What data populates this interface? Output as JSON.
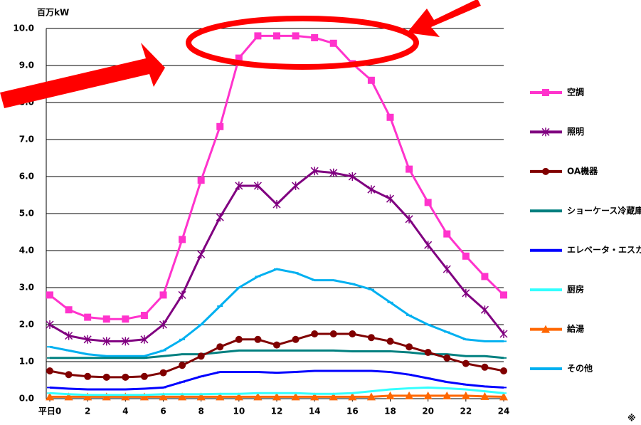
{
  "chart_data": {
    "type": "line",
    "y_axis_label": "百万kW",
    "annotation": "※",
    "x": [
      0,
      1,
      2,
      3,
      4,
      5,
      6,
      7,
      8,
      9,
      10,
      11,
      12,
      13,
      14,
      15,
      16,
      17,
      18,
      19,
      20,
      21,
      22,
      23,
      24
    ],
    "xlim": [
      0,
      24
    ],
    "xticks": [
      {
        "value": 0,
        "label": "平日0"
      },
      2,
      4,
      6,
      8,
      10,
      12,
      14,
      16,
      18,
      20,
      22,
      24
    ],
    "ylim": [
      0,
      10
    ],
    "yticks": [
      {
        "value": 0,
        "label": "0.0"
      },
      {
        "value": 1,
        "label": "1.0"
      },
      {
        "value": 2,
        "label": "2.0"
      },
      {
        "value": 3,
        "label": "3.0"
      },
      {
        "value": 4,
        "label": "4.0"
      },
      {
        "value": 5,
        "label": "5.0"
      },
      {
        "value": 6,
        "label": "6.0"
      },
      {
        "value": 7,
        "label": "7.0"
      },
      {
        "value": 8,
        "label": "8.0"
      },
      {
        "value": 9,
        "label": "9.0"
      },
      {
        "value": 10,
        "label": "10.0"
      }
    ],
    "grid": true,
    "legend": "right",
    "series": [
      {
        "name": "空調",
        "color": "#ff33cc",
        "marker": "square",
        "values": [
          2.8,
          2.4,
          2.2,
          2.15,
          2.15,
          2.25,
          2.8,
          4.3,
          5.9,
          7.35,
          9.2,
          9.8,
          9.8,
          9.8,
          9.75,
          9.6,
          9.05,
          8.6,
          7.6,
          6.2,
          5.3,
          4.45,
          3.85,
          3.3,
          2.8
        ]
      },
      {
        "name": "照明",
        "color": "#800080",
        "marker": "asterisk",
        "values": [
          2.0,
          1.7,
          1.6,
          1.55,
          1.55,
          1.6,
          2.0,
          2.8,
          3.9,
          4.9,
          5.75,
          5.75,
          5.25,
          5.75,
          6.15,
          6.1,
          6.0,
          5.65,
          5.4,
          4.85,
          4.15,
          3.5,
          2.85,
          2.4,
          1.75
        ]
      },
      {
        "name": "OA機器",
        "color": "#800000",
        "marker": "circle",
        "values": [
          0.75,
          0.65,
          0.6,
          0.58,
          0.58,
          0.6,
          0.7,
          0.9,
          1.15,
          1.4,
          1.6,
          1.6,
          1.45,
          1.6,
          1.75,
          1.75,
          1.75,
          1.65,
          1.55,
          1.4,
          1.25,
          1.1,
          0.95,
          0.85,
          0.75
        ]
      },
      {
        "name": "ショーケース冷蔵庫",
        "color": "#008080",
        "marker": "dash",
        "values": [
          1.1,
          1.1,
          1.1,
          1.1,
          1.1,
          1.1,
          1.15,
          1.2,
          1.2,
          1.25,
          1.3,
          1.3,
          1.3,
          1.3,
          1.3,
          1.3,
          1.28,
          1.28,
          1.28,
          1.25,
          1.2,
          1.2,
          1.15,
          1.15,
          1.1
        ]
      },
      {
        "name": "エレベータ・エスカレータ",
        "color": "#0000ff",
        "marker": "dash",
        "values": [
          0.3,
          0.27,
          0.25,
          0.25,
          0.25,
          0.27,
          0.3,
          0.45,
          0.6,
          0.72,
          0.72,
          0.72,
          0.7,
          0.72,
          0.75,
          0.75,
          0.75,
          0.75,
          0.72,
          0.65,
          0.55,
          0.45,
          0.38,
          0.33,
          0.3
        ]
      },
      {
        "name": "厨房",
        "color": "#33ffff",
        "marker": "dash",
        "values": [
          0.15,
          0.12,
          0.1,
          0.1,
          0.1,
          0.1,
          0.12,
          0.12,
          0.12,
          0.13,
          0.13,
          0.15,
          0.15,
          0.15,
          0.13,
          0.13,
          0.15,
          0.2,
          0.25,
          0.28,
          0.3,
          0.28,
          0.25,
          0.2,
          0.15
        ]
      },
      {
        "name": "給湯",
        "color": "#ff6600",
        "marker": "triangle",
        "values": [
          0.05,
          0.05,
          0.05,
          0.05,
          0.05,
          0.05,
          0.05,
          0.05,
          0.05,
          0.05,
          0.05,
          0.05,
          0.05,
          0.05,
          0.05,
          0.05,
          0.05,
          0.05,
          0.08,
          0.08,
          0.08,
          0.08,
          0.08,
          0.06,
          0.05
        ]
      },
      {
        "name": "その他",
        "color": "#00b0f0",
        "marker": "dash",
        "values": [
          1.4,
          1.3,
          1.2,
          1.15,
          1.15,
          1.15,
          1.3,
          1.6,
          2.0,
          2.5,
          3.0,
          3.3,
          3.5,
          3.4,
          3.2,
          3.2,
          3.1,
          2.95,
          2.6,
          2.25,
          2.0,
          1.8,
          1.6,
          1.55,
          1.55
        ]
      }
    ]
  }
}
